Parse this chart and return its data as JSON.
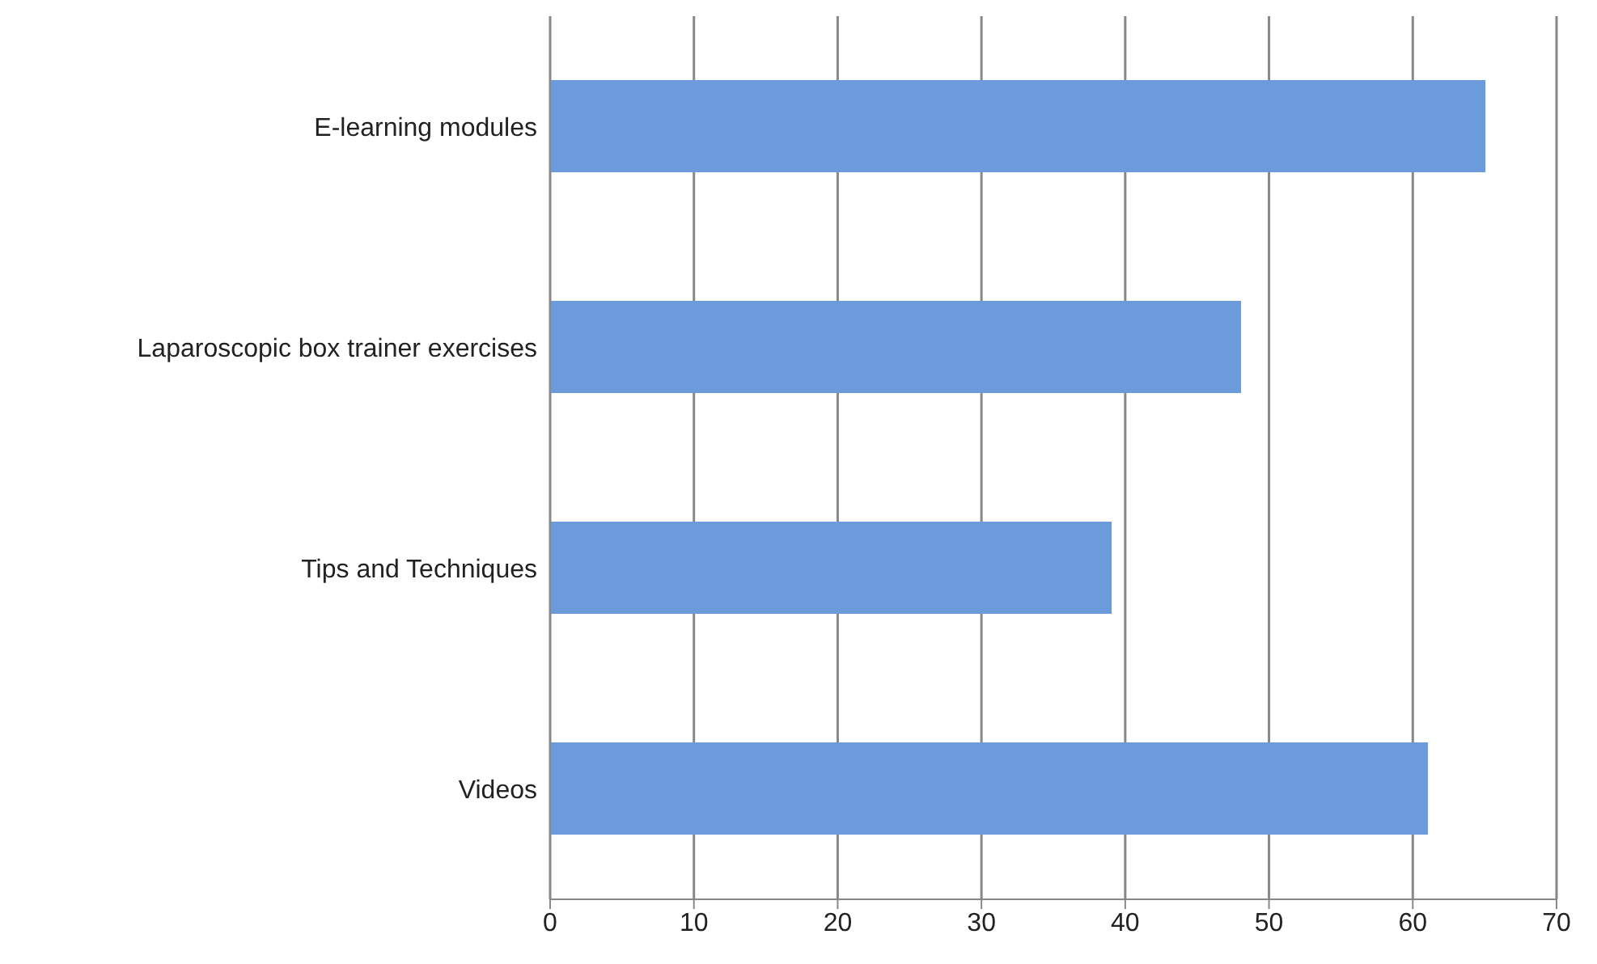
{
  "chart_data": {
    "type": "bar",
    "orientation": "horizontal",
    "categories": [
      "E-learning modules",
      "Laparoscopic box trainer exercises",
      "Tips and Techniques",
      "Videos"
    ],
    "values": [
      65,
      48,
      39,
      61
    ],
    "color": "#6b9bdb",
    "xlim": [
      0,
      70
    ],
    "xticks": [
      0,
      10,
      20,
      30,
      40,
      50,
      60,
      70
    ],
    "grid": "x"
  }
}
